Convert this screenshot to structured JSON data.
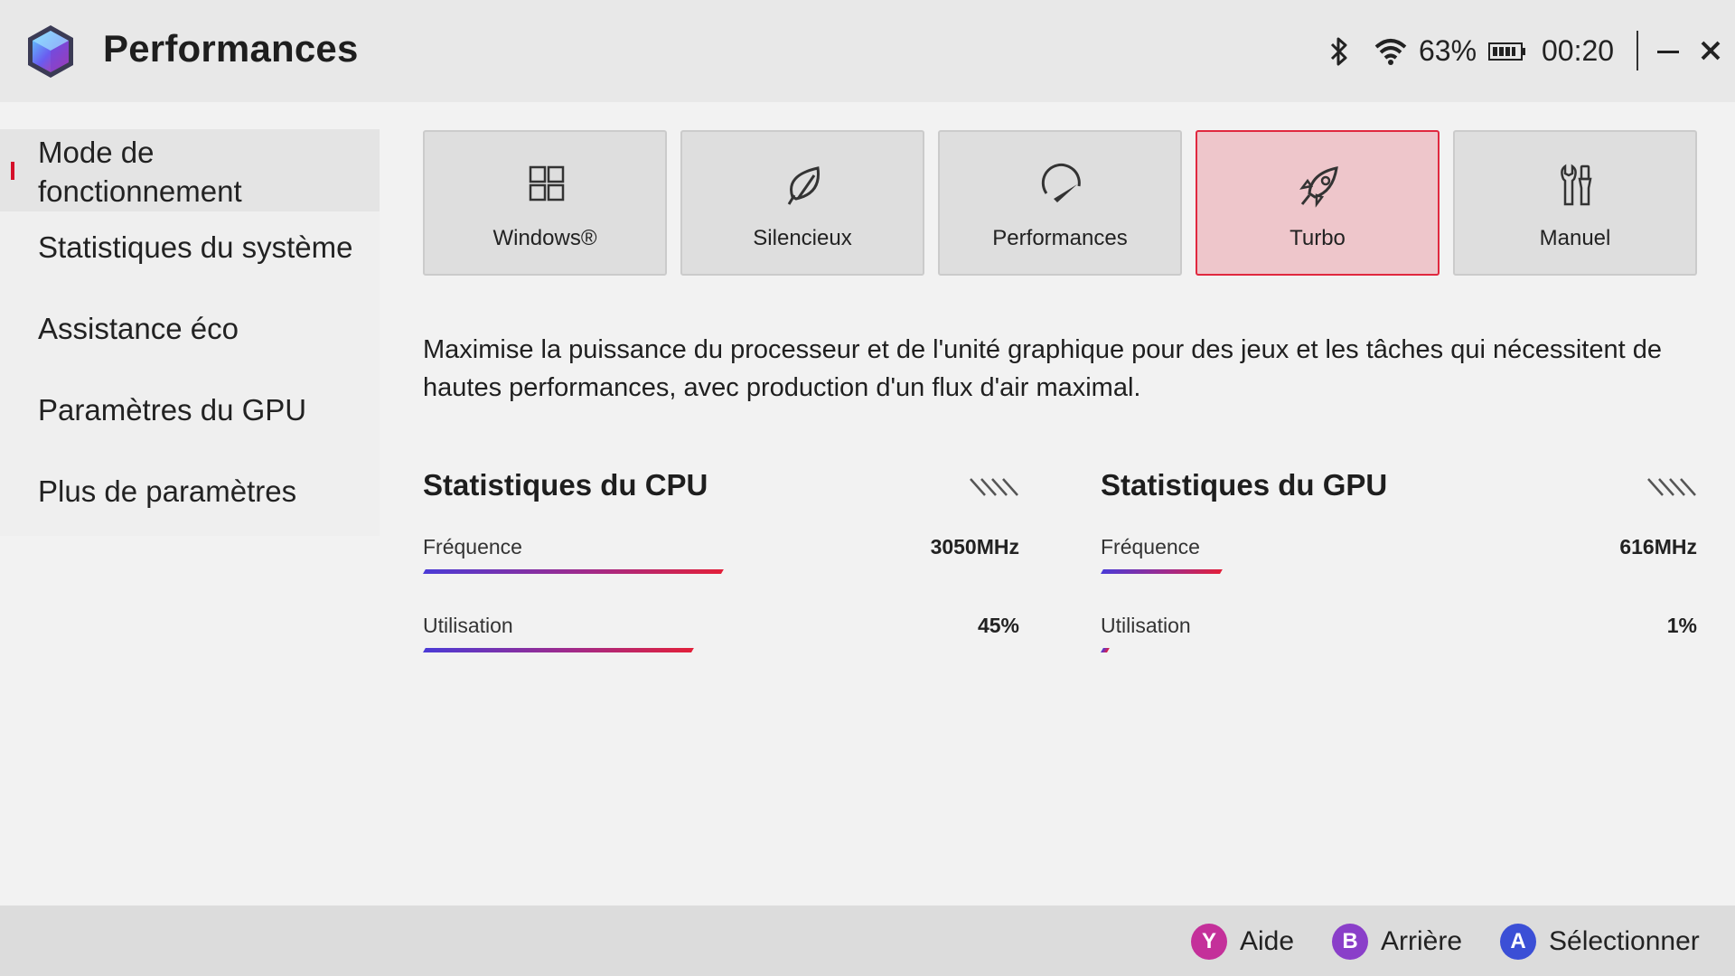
{
  "header": {
    "title": "Performances",
    "battery_percent": "63%",
    "clock": "00:20",
    "icons": [
      "app-logo-icon",
      "bluetooth-icon",
      "wifi-icon",
      "battery-icon",
      "minimize-icon",
      "close-icon"
    ]
  },
  "sidebar": {
    "items": [
      {
        "label": "Mode de fonctionnement",
        "line1": "Mode de",
        "line2": "fonctionnement",
        "active": true
      },
      {
        "label": "Statistiques du système",
        "active": false
      },
      {
        "label": "Assistance éco",
        "active": false
      },
      {
        "label": "Paramètres du GPU",
        "active": false
      },
      {
        "label": "Plus de paramètres",
        "active": false
      }
    ]
  },
  "modes": {
    "selected": "Turbo",
    "items": [
      {
        "label": "Windows®",
        "icon": "windows-grid-icon"
      },
      {
        "label": "Silencieux",
        "icon": "leaf-icon"
      },
      {
        "label": "Performances",
        "icon": "speedometer-icon"
      },
      {
        "label": "Turbo",
        "icon": "rocket-icon"
      },
      {
        "label": "Manuel",
        "icon": "tools-icon"
      }
    ]
  },
  "description": "Maximise la puissance du processeur et de l'unité graphique pour des jeux et les tâches qui nécessitent de hautes performances, avec production d'un flux d'air maximal.",
  "cpu_stats": {
    "title": "Statistiques du CPU",
    "frequency_label": "Fréquence",
    "frequency_value": "3050MHz",
    "frequency_level": 0.5,
    "usage_label": "Utilisation",
    "usage_value": "45%",
    "usage_level": 0.45
  },
  "gpu_stats": {
    "title": "Statistiques du GPU",
    "frequency_label": "Fréquence",
    "frequency_value": "616MHz",
    "frequency_level": 0.2,
    "usage_label": "Utilisation",
    "usage_value": "1%",
    "usage_level": 0.01
  },
  "bottom_bar": {
    "help": {
      "button": "Y",
      "label": "Aide",
      "color": "#c4309a"
    },
    "back": {
      "button": "B",
      "label": "Arrière",
      "color": "#8a3fc9"
    },
    "select": {
      "button": "A",
      "label": "Sélectionner",
      "color": "#3b4fd6"
    }
  },
  "colors": {
    "accent": "#e0283f",
    "selected_card_bg": "#eec6cb",
    "bar_gradient_start": "#4b3bd6",
    "bar_gradient_end": "#e2203a"
  }
}
